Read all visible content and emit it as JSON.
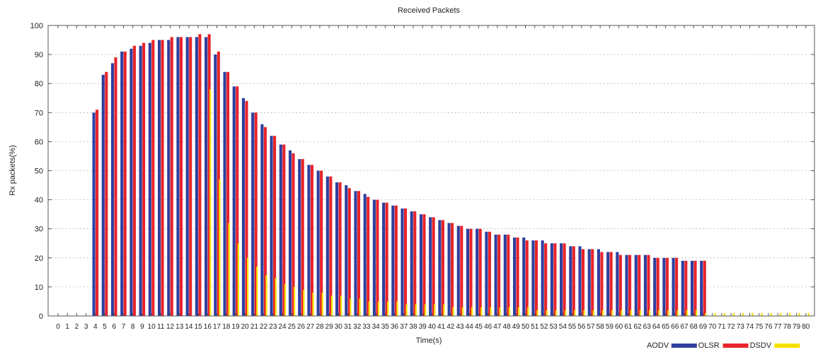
{
  "chart_data": {
    "type": "bar",
    "title": "Received Packets",
    "xlabel": "Time(s)",
    "ylabel": "Rx packets(%)",
    "ylim": [
      0,
      100
    ],
    "yticks": [
      0,
      10,
      20,
      30,
      40,
      50,
      60,
      70,
      80,
      90,
      100
    ],
    "grid": true,
    "legend_position": "bottom-right",
    "categories": [
      "0",
      "1",
      "2",
      "3",
      "4",
      "5",
      "6",
      "7",
      "8",
      "9",
      "10",
      "11",
      "12",
      "13",
      "14",
      "15",
      "16",
      "17",
      "18",
      "19",
      "20",
      "21",
      "22",
      "23",
      "24",
      "25",
      "26",
      "27",
      "28",
      "29",
      "30",
      "31",
      "32",
      "33",
      "34",
      "35",
      "36",
      "37",
      "38",
      "39",
      "40",
      "41",
      "42",
      "43",
      "44",
      "45",
      "46",
      "47",
      "48",
      "49",
      "50",
      "51",
      "52",
      "53",
      "54",
      "55",
      "56",
      "57",
      "58",
      "59",
      "60",
      "61",
      "62",
      "63",
      "64",
      "65",
      "66",
      "67",
      "68",
      "69",
      "70",
      "71",
      "72",
      "73",
      "74",
      "75",
      "76",
      "77",
      "78",
      "79",
      "80"
    ],
    "series": [
      {
        "name": "AODV",
        "color": "#2e3f9e",
        "values": [
          0,
          0,
          0,
          0,
          70,
          83,
          87,
          91,
          92,
          93,
          94,
          95,
          95,
          96,
          96,
          96,
          96,
          90,
          84,
          79,
          75,
          70,
          66,
          62,
          59,
          57,
          54,
          52,
          50,
          48,
          46,
          45,
          43,
          42,
          40,
          39,
          38,
          37,
          36,
          35,
          34,
          33,
          32,
          31,
          30,
          30,
          29,
          28,
          28,
          27,
          27,
          26,
          26,
          25,
          25,
          24,
          24,
          23,
          23,
          22,
          22,
          21,
          21,
          21,
          20,
          20,
          20,
          19,
          19,
          19,
          0,
          0,
          0,
          0,
          0,
          0,
          0,
          0,
          0,
          0,
          0
        ]
      },
      {
        "name": "OLSR",
        "color": "#e8232a",
        "values": [
          0,
          0,
          0,
          0,
          71,
          84,
          89,
          91,
          93,
          94,
          95,
          95,
          96,
          96,
          96,
          97,
          97,
          91,
          84,
          79,
          74,
          70,
          65,
          62,
          59,
          56,
          54,
          52,
          50,
          48,
          46,
          44,
          43,
          41,
          40,
          39,
          38,
          37,
          36,
          35,
          34,
          33,
          32,
          31,
          30,
          30,
          29,
          28,
          28,
          27,
          26,
          26,
          25,
          25,
          25,
          24,
          23,
          23,
          22,
          22,
          21,
          21,
          21,
          21,
          20,
          20,
          20,
          19,
          19,
          19,
          0,
          0,
          0,
          0,
          0,
          0,
          0,
          0,
          0,
          0,
          0
        ]
      },
      {
        "name": "DSDV",
        "color": "#f5e100",
        "values": [
          0,
          0,
          0,
          0,
          0,
          0,
          0,
          0,
          0,
          0,
          0,
          0,
          0,
          0,
          0,
          0,
          78,
          47,
          32,
          25,
          20,
          17,
          14,
          13,
          11,
          10,
          9,
          8,
          8,
          7,
          7,
          6,
          6,
          5,
          5,
          5,
          5,
          4,
          4,
          4,
          4,
          4,
          3,
          3,
          3,
          3,
          3,
          3,
          3,
          3,
          3,
          2,
          2,
          2,
          2,
          2,
          2,
          2,
          2,
          2,
          2,
          2,
          2,
          2,
          2,
          2,
          2,
          2,
          2,
          1,
          1,
          1,
          1,
          1,
          1,
          1,
          1,
          1,
          1,
          1,
          1
        ]
      }
    ]
  }
}
